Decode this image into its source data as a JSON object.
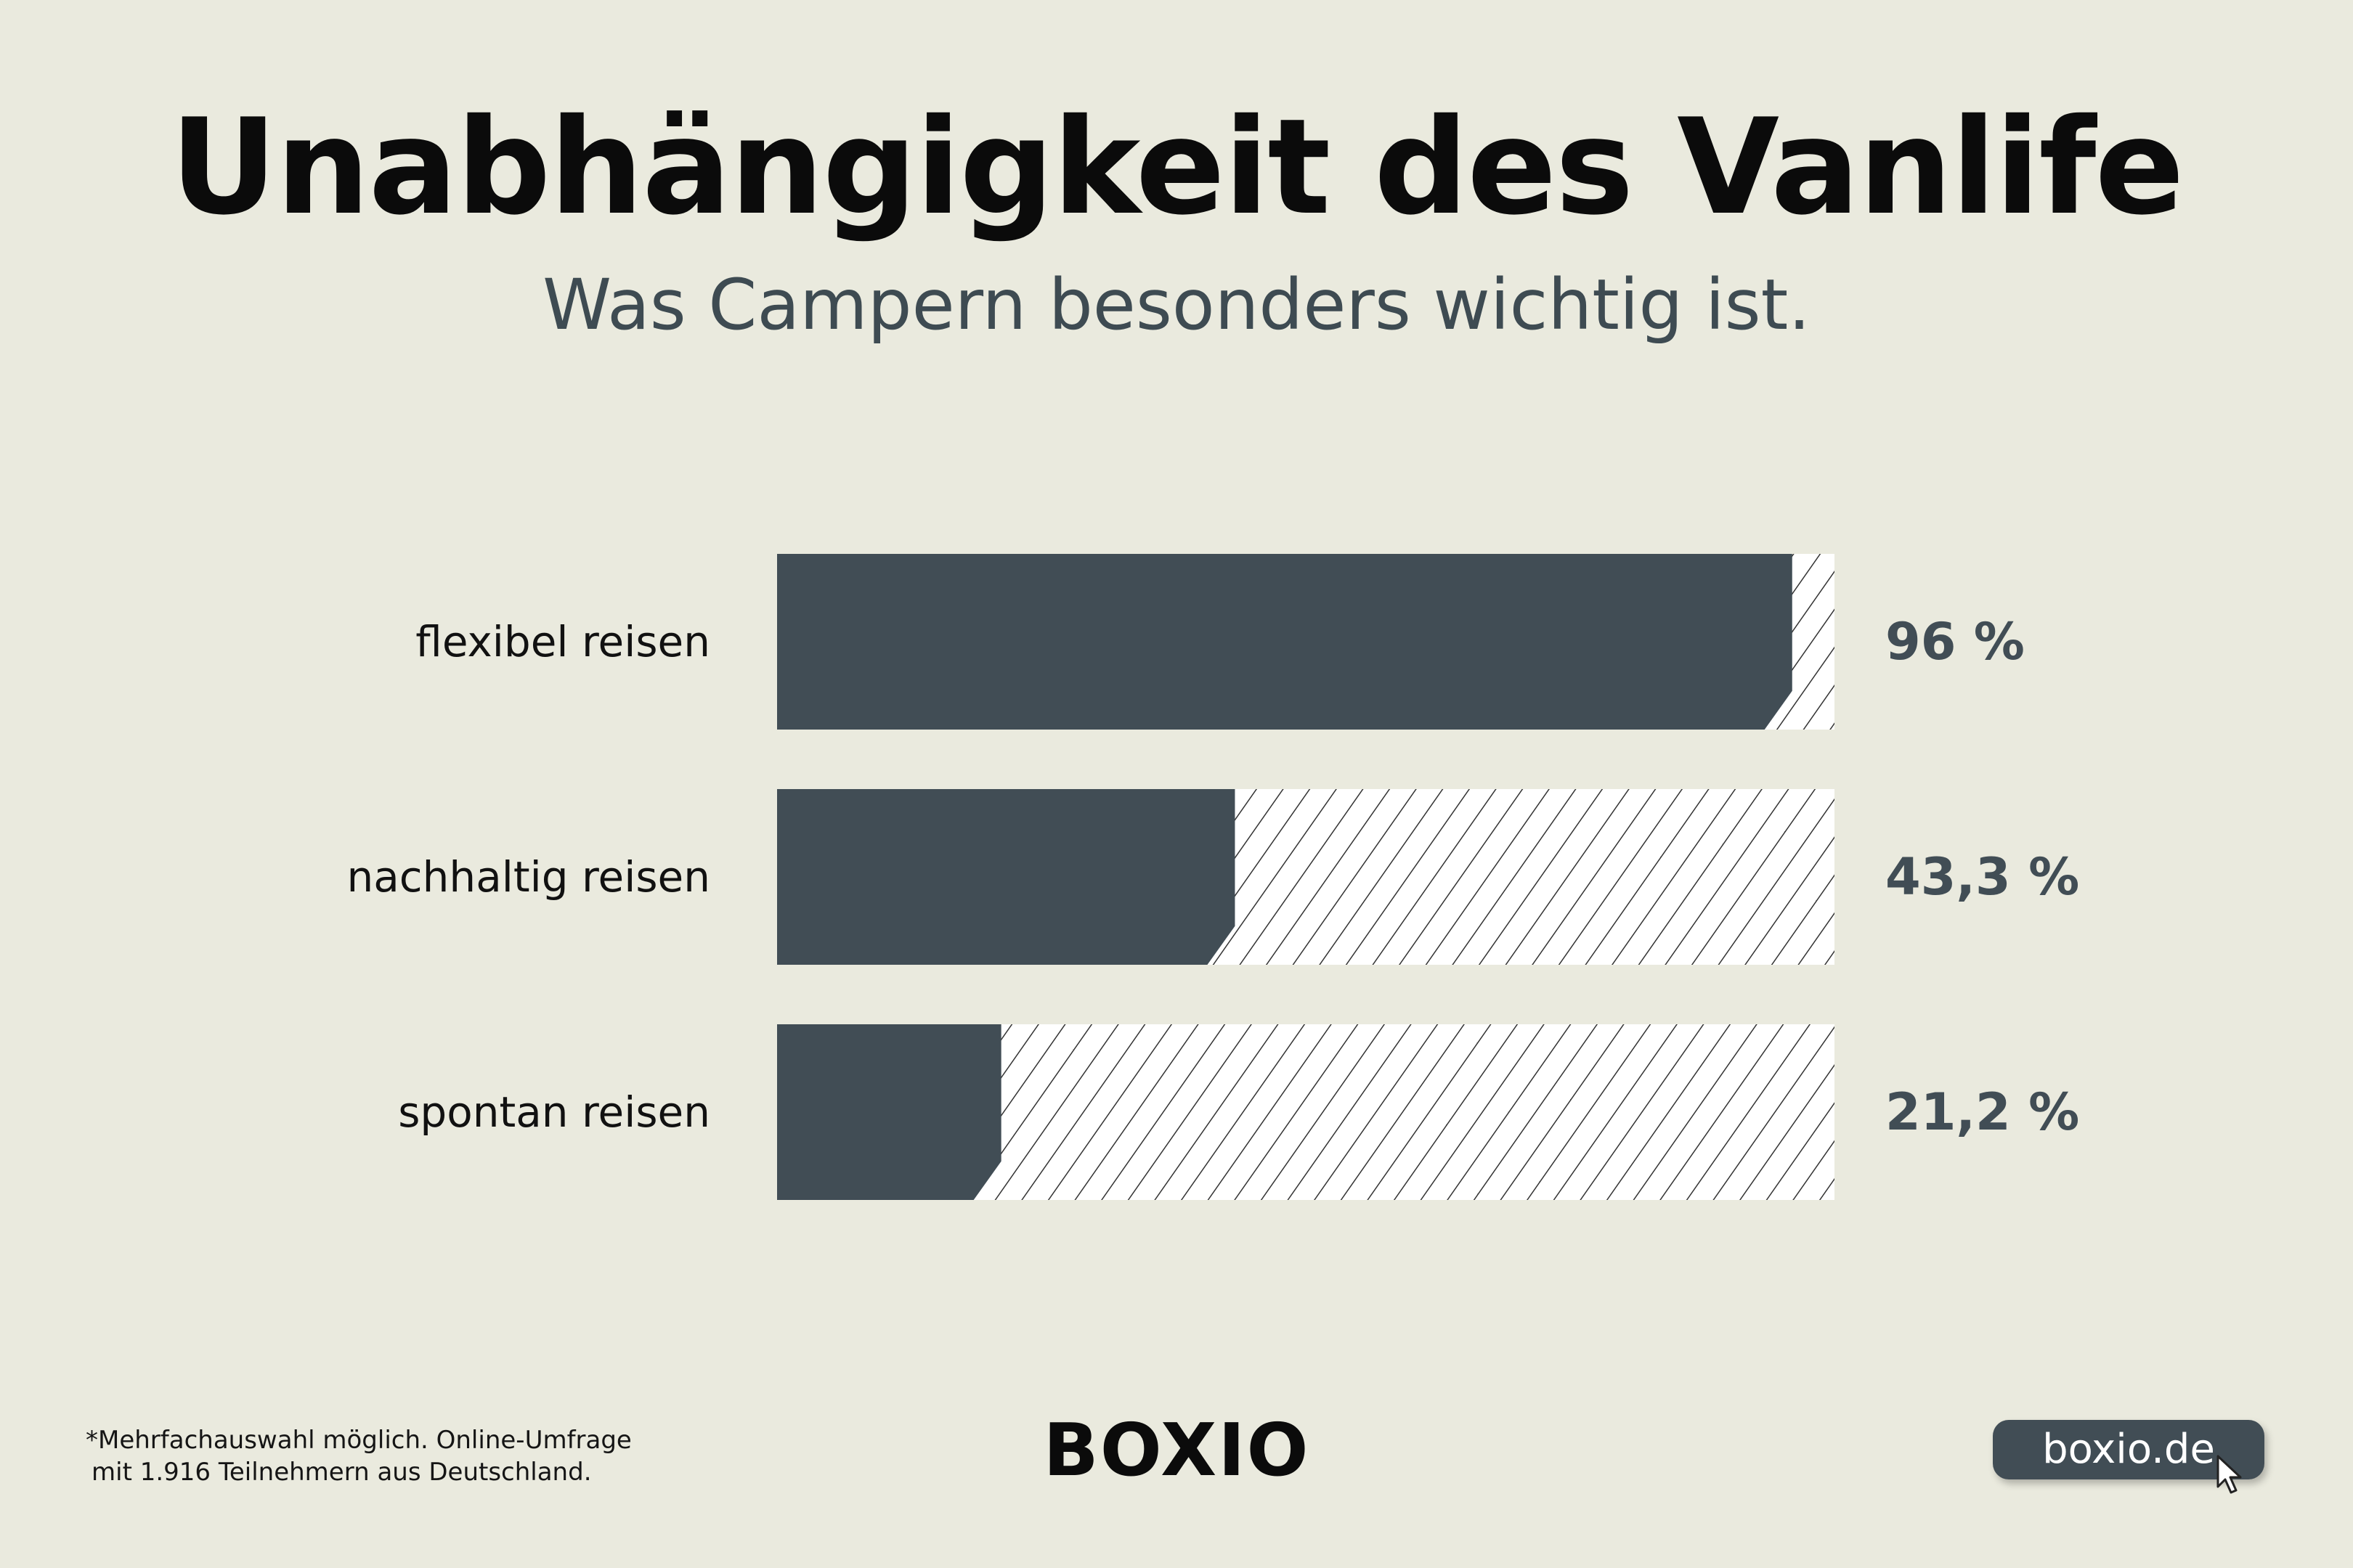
{
  "title": "Unabhängigkeit des Vanlife",
  "subtitle": "Was Campern besonders wichtig ist.",
  "chart_data": {
    "type": "bar",
    "orientation": "horizontal",
    "categories": [
      "flexibel reisen",
      "nachhaltig reisen",
      "spontan reisen"
    ],
    "values": [
      96,
      43.3,
      21.2
    ],
    "value_labels": [
      "96 %",
      "43,3 %",
      "21,2 %"
    ],
    "xlim": [
      0,
      100
    ],
    "grid": false,
    "legend": "none",
    "colors": {
      "bar": "#414d55",
      "remainder_fill": "#ffffff",
      "hatch": "#333333",
      "value_text": "#414d55",
      "label_text": "#111111"
    }
  },
  "footnote": {
    "line1": "*Mehrfachauswahl möglich. Online-Umfrage",
    "line2": "mit 1.916 Teilnehmern aus Deutschland."
  },
  "brand": {
    "logo": "BOXIO",
    "url": "boxio.de",
    "url_icon": "cursor-pointer-icon"
  }
}
